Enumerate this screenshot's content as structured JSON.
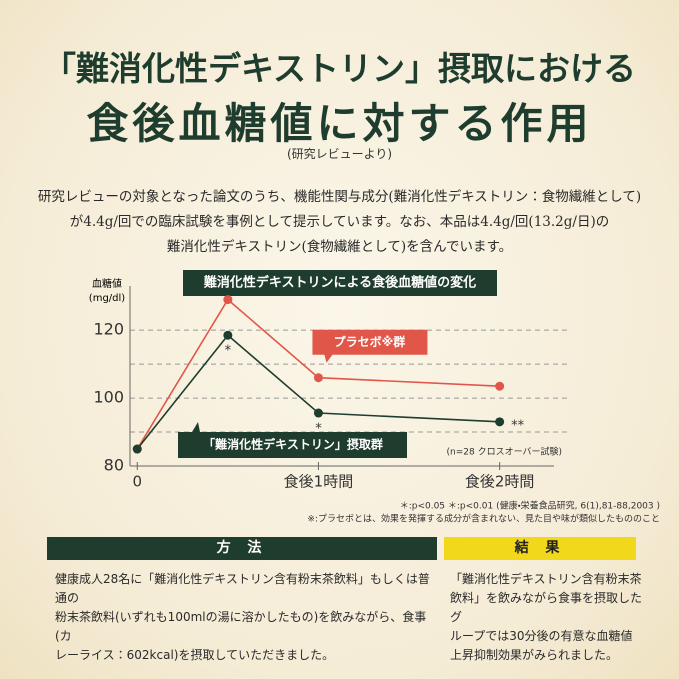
{
  "header": {
    "line1": "「難消化性デキストリン」摂取における",
    "line2": "食後血糖値に対する作用",
    "source": "(研究レビューより)"
  },
  "intro": [
    "研究レビューの対象となった論文のうち、機能性関与成分(難消化性デキストリン：食物繊維として)",
    "が4.4g/回での臨床試験を事例として提示しています。なお、本品は4.4g/回(13.2g/日)の",
    "難消化性デキストリン(食物繊維として)を含んでいます。"
  ],
  "chart_data": {
    "type": "line",
    "title": "難消化性デキストリンによる食後血糖値の変化",
    "ylabel": "血糖値",
    "yunit": "(mg/dl)",
    "x": [
      0,
      0.5,
      1,
      2
    ],
    "xlim": [
      -0.04,
      2.3
    ],
    "xticks": [
      0,
      {
        "value": 1,
        "label": "食後1時間"
      },
      {
        "value": 2,
        "label": "食後2時間"
      }
    ],
    "ylim": [
      80,
      133
    ],
    "yticks": [
      80,
      100,
      120
    ],
    "grid_lines": [
      90,
      100,
      110,
      120
    ],
    "grid": true,
    "series": [
      {
        "name": "プラセボ※群",
        "color": "#e0574a",
        "values": [
          85,
          129,
          106,
          103.5
        ]
      },
      {
        "name": "「難消化性デキストリン」摂取群",
        "color": "#1f3d2e",
        "values": [
          85,
          118.5,
          95.6,
          93
        ]
      }
    ],
    "annotations": [
      {
        "x": 0.5,
        "text": "*"
      },
      {
        "x": 1,
        "text": "*"
      },
      {
        "x": 2,
        "text": "**"
      }
    ],
    "note": "(n=28 クロスオーバー試験)",
    "footnotes": [
      "＊:p<0.05 ＊:p<0.01 (健康・栄養食品研究, 6(1),81-88,2003 )",
      "※:プラセボとは、効果を発揮する成分が含まれない、見た目や味が類似したもののこと"
    ]
  },
  "method": {
    "title": "方 法",
    "lines": [
      "健康成人28名に「難消化性デキストリン含有粉末茶飲料」もしくは普通の",
      "粉末茶飲料(いずれも100mlの湯に溶かしたもの)を飲みながら、食事(カ",
      "レーライス：602kcal)を摂取していただきました。"
    ]
  },
  "result": {
    "title": "結 果",
    "lines": [
      "「難消化性デキストリン含有粉末茶",
      "飲料」を飲みながら食事を摂取したグ",
      "ループでは30分後の有意な血糖値",
      "上昇抑制効果がみられました。"
    ]
  }
}
